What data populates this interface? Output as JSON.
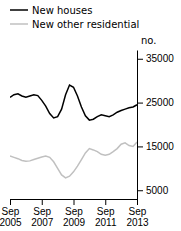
{
  "chart_data": {
    "type": "line",
    "ylabel": "no.",
    "categories": [
      "Sep\n2005",
      null,
      null,
      null,
      null,
      null,
      null,
      null,
      "Sep\n2007",
      null,
      null,
      null,
      null,
      null,
      null,
      null,
      "Sep\n2009",
      null,
      null,
      null,
      null,
      null,
      null,
      null,
      "Sep\n2011",
      null,
      null,
      null,
      null,
      null,
      null,
      null,
      "Sep\n2013"
    ],
    "series": [
      {
        "name": "New houses",
        "color": "#000000",
        "values": [
          26200,
          26800,
          27000,
          26500,
          26200,
          26500,
          26800,
          26600,
          25500,
          24200,
          22500,
          21500,
          21800,
          23500,
          26800,
          29000,
          28500,
          26500,
          24000,
          22000,
          21000,
          21200,
          21800,
          22200,
          22000,
          21800,
          22200,
          22800,
          23200,
          23500,
          23800,
          24000,
          24500
        ]
      },
      {
        "name": "New other residential",
        "color": "#c0c0c0",
        "values": [
          12800,
          12500,
          12200,
          11800,
          11600,
          11700,
          12000,
          12300,
          12600,
          12800,
          12500,
          11500,
          10000,
          8500,
          7800,
          8200,
          9200,
          10500,
          12000,
          13500,
          14500,
          14200,
          13800,
          13200,
          13000,
          13200,
          13800,
          14500,
          15500,
          15800,
          15200,
          15000,
          16000
        ]
      }
    ],
    "ylim": [
      3000,
      37000
    ],
    "yticks": [
      5000,
      15000,
      25000,
      35000
    ]
  }
}
